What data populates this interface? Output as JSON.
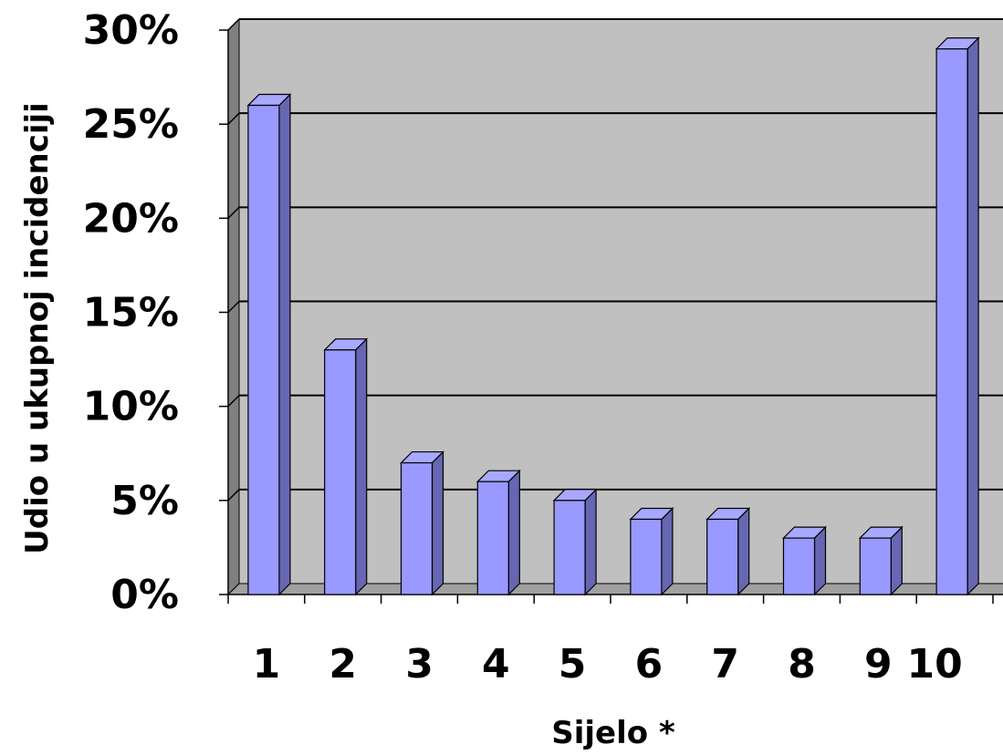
{
  "chart_data": {
    "type": "bar",
    "title": "",
    "xlabel": "Sijelo *",
    "ylabel": "Udio u ukupnoj incidenciji",
    "categories": [
      "1",
      "2",
      "3",
      "4",
      "5",
      "6",
      "7",
      "8",
      "9",
      "10"
    ],
    "values": [
      0.26,
      0.13,
      0.07,
      0.06,
      0.05,
      0.04,
      0.04,
      0.03,
      0.03,
      0.29
    ],
    "ylim": [
      0,
      0.3
    ],
    "yticks": [
      0,
      0.05,
      0.1,
      0.15,
      0.2,
      0.25,
      0.3
    ],
    "ytick_labels": [
      "0%",
      "5%",
      "10%",
      "15%",
      "20%",
      "25%",
      "30%"
    ],
    "grid": true,
    "legend": "none",
    "colors": {
      "bar_front": "#9999ff",
      "bar_side": "#6666b3",
      "bar_top": "#a8a8ff",
      "plot_back": "#c0c0c0",
      "side_wall": "#808080",
      "floor": "#a0a0a0",
      "gridline": "#000000"
    }
  }
}
